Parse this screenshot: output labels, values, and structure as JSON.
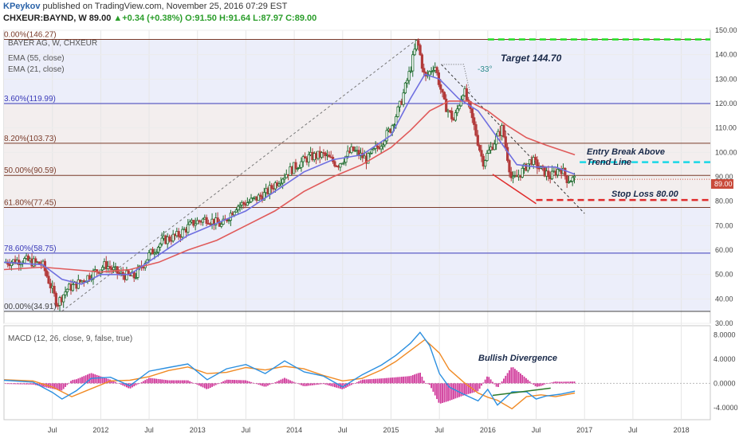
{
  "header": {
    "user": "KPeykov",
    "published": "published on TradingView.com, November 25, 2016 07:29 EST",
    "symbol": "CHXEUR:BAYND, W",
    "price": "89.00",
    "change": "▲+0.34 (+0.38%)",
    "ohlc": "O:91.50  H:91.64  L:87.97  C:89.00"
  },
  "legend": {
    "title": "BAYER AG, W, CHXEUR",
    "ema55": "EMA (55, close)",
    "ema21": "EMA (21, close)",
    "macd": "MACD (12, 26, close, 9, false, true)"
  },
  "annotations": {
    "target": "Target 144.70",
    "entry_line1": "Entry Break Above",
    "entry_line2": "Trend Line",
    "stop": "Stop Loss 80.00",
    "angle": "-33°",
    "divergence": "Bullish Divergence",
    "price_tag": "89.00"
  },
  "colors": {
    "candle_up": "#1e6b2e",
    "candle_down": "#b23a3a",
    "ema21": "#6f6fe0",
    "ema55": "#e05a5a",
    "fib_blue": "#3a3ab8",
    "fib_brown": "#7a3b2a",
    "target": "#22dd22",
    "entry": "#19d7e6",
    "stop": "#e02b2b",
    "macd_line": "#2b8fe0",
    "signal_line": "#f08a24",
    "histogram": "#d0389a"
  },
  "chart_data": [
    {
      "type": "line",
      "title": "BAYER AG, W, CHXEUR",
      "x_ticks": [
        "Jul",
        "2012",
        "Jul",
        "2013",
        "Jul",
        "2014",
        "Jul",
        "2015",
        "Jul",
        "2016",
        "Jul",
        "2017",
        "Jul",
        "2018"
      ],
      "x_tick_dates": [
        2011.5,
        2012.0,
        2012.5,
        2013.0,
        2013.5,
        2014.0,
        2014.5,
        2015.0,
        2015.5,
        2016.0,
        2016.5,
        2017.0,
        2017.5,
        2018.0
      ],
      "y_ticks": [
        "30.00",
        "40.00",
        "50.00",
        "60.00",
        "70.00",
        "80.00",
        "90.00",
        "100.00",
        "110.00",
        "120.00",
        "130.00",
        "140.00",
        "150.00"
      ],
      "ylim": [
        30,
        150
      ],
      "xlim": [
        2011.0,
        2018.3
      ],
      "fib_levels": [
        {
          "label": "0.00%(146.27)",
          "value": 146.27
        },
        {
          "label": "3.60%(119.99)",
          "value": 119.99
        },
        {
          "label": "8.20%(103.73)",
          "value": 103.73
        },
        {
          "label": "50.00%(90.59)",
          "value": 90.59
        },
        {
          "label": "61.80%(77.45)",
          "value": 77.45
        },
        {
          "label": "78.60%(58.75)",
          "value": 58.75
        },
        {
          "label": "00.00%(34.91)",
          "value": 34.91
        }
      ],
      "series": [
        {
          "name": "BAYER AG",
          "x": [
            2011.0,
            2011.2,
            2011.4,
            2011.55,
            2011.65,
            2011.75,
            2011.9,
            2012.05,
            2012.2,
            2012.35,
            2012.5,
            2012.65,
            2012.8,
            2012.95,
            2013.1,
            2013.25,
            2013.4,
            2013.55,
            2013.7,
            2013.85,
            2014.0,
            2014.15,
            2014.3,
            2014.45,
            2014.6,
            2014.75,
            2014.9,
            2015.0,
            2015.1,
            2015.2,
            2015.27,
            2015.35,
            2015.45,
            2015.55,
            2015.65,
            2015.75,
            2015.85,
            2015.95,
            2016.05,
            2016.15,
            2016.25,
            2016.35,
            2016.45,
            2016.55,
            2016.65,
            2016.75,
            2016.82,
            2016.9
          ],
          "values": [
            55,
            56,
            54,
            38,
            44,
            46,
            50,
            54,
            50,
            49,
            58,
            64,
            66,
            71,
            73,
            70,
            78,
            80,
            83,
            89,
            94,
            98,
            99,
            95,
            101,
            97,
            104,
            110,
            120,
            134,
            146,
            130,
            136,
            120,
            113,
            126,
            112,
            96,
            103,
            110,
            88,
            92,
            97,
            93,
            90,
            94,
            89,
            89
          ]
        },
        {
          "name": "EMA (21, close)",
          "x": [
            2011.0,
            2011.4,
            2011.6,
            2011.8,
            2012.0,
            2012.3,
            2012.6,
            2012.9,
            2013.2,
            2013.5,
            2013.8,
            2014.1,
            2014.4,
            2014.7,
            2015.0,
            2015.2,
            2015.35,
            2015.5,
            2015.7,
            2015.9,
            2016.1,
            2016.3,
            2016.5,
            2016.7,
            2016.9
          ],
          "values": [
            55,
            54,
            48,
            46,
            50,
            50,
            58,
            66,
            71,
            76,
            84,
            92,
            97,
            99,
            107,
            122,
            132,
            130,
            122,
            117,
            106,
            95,
            94,
            94,
            91
          ]
        },
        {
          "name": "EMA (55, close)",
          "x": [
            2011.0,
            2011.4,
            2011.7,
            2012.0,
            2012.3,
            2012.6,
            2012.9,
            2013.2,
            2013.5,
            2013.8,
            2014.1,
            2014.4,
            2014.7,
            2015.0,
            2015.2,
            2015.4,
            2015.6,
            2015.8,
            2016.0,
            2016.2,
            2016.4,
            2016.6,
            2016.9
          ],
          "values": [
            52,
            53,
            52,
            51,
            52,
            55,
            60,
            64,
            70,
            76,
            84,
            90,
            95,
            102,
            109,
            117,
            121,
            121,
            117,
            111,
            106,
            103,
            99
          ]
        }
      ]
    },
    {
      "type": "line",
      "title": "MACD (12, 26, close, 9, false, true)",
      "y_ticks": [
        "8.0000",
        "4.0000",
        "0.0000",
        "-4.0000"
      ],
      "ylim": [
        -6,
        9.5
      ],
      "series": [
        {
          "name": "MACD",
          "x": [
            2011.0,
            2011.3,
            2011.5,
            2011.6,
            2011.75,
            2011.9,
            2012.1,
            2012.3,
            2012.5,
            2012.7,
            2012.9,
            2013.1,
            2013.3,
            2013.5,
            2013.7,
            2013.9,
            2014.1,
            2014.3,
            2014.5,
            2014.7,
            2014.9,
            2015.05,
            2015.2,
            2015.3,
            2015.4,
            2015.5,
            2015.6,
            2015.75,
            2015.9,
            2016.0,
            2016.1,
            2016.25,
            2016.4,
            2016.5,
            2016.6,
            2016.75,
            2016.9
          ],
          "values": [
            0.5,
            0.2,
            -1.5,
            -2.6,
            -1.2,
            0.8,
            1.0,
            -0.4,
            2.0,
            2.6,
            3.2,
            0.6,
            2.4,
            3.1,
            1.6,
            3.7,
            1.9,
            1.2,
            -0.6,
            1.4,
            3.0,
            4.6,
            6.6,
            8.4,
            6.2,
            1.6,
            -0.6,
            -1.8,
            -2.9,
            -1.0,
            -3.6,
            -1.4,
            -1.4,
            -2.6,
            -2.1,
            -1.8,
            -1.3
          ]
        },
        {
          "name": "Signal",
          "x": [
            2011.0,
            2011.3,
            2011.5,
            2011.7,
            2011.9,
            2012.1,
            2012.3,
            2012.5,
            2012.7,
            2012.9,
            2013.1,
            2013.3,
            2013.5,
            2013.7,
            2013.9,
            2014.1,
            2014.3,
            2014.5,
            2014.7,
            2014.9,
            2015.05,
            2015.2,
            2015.35,
            2015.5,
            2015.6,
            2015.75,
            2015.9,
            2016.0,
            2016.1,
            2016.25,
            2016.4,
            2016.55,
            2016.7,
            2016.9
          ],
          "values": [
            0.6,
            0.4,
            -0.6,
            -2.2,
            -0.9,
            0.4,
            0.5,
            1.1,
            2.1,
            2.7,
            1.6,
            1.8,
            2.6,
            2.2,
            2.8,
            2.4,
            1.3,
            0.4,
            0.8,
            2.2,
            3.6,
            5.4,
            7.2,
            5.0,
            2.3,
            0.2,
            -1.6,
            -2.3,
            -2.8,
            -4.2,
            -2.2,
            -1.9,
            -2.2,
            -1.6
          ]
        }
      ]
    }
  ]
}
